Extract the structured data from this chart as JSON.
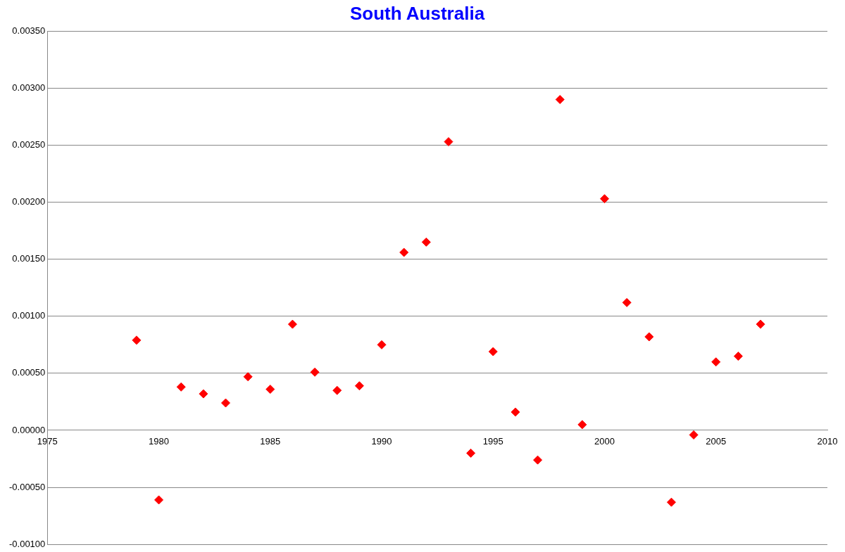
{
  "chart_data": {
    "type": "scatter",
    "title": "South Australia",
    "x": [
      1979,
      1980,
      1981,
      1982,
      1983,
      1984,
      1985,
      1986,
      1987,
      1988,
      1989,
      1990,
      1991,
      1992,
      1993,
      1994,
      1995,
      1996,
      1997,
      1998,
      1999,
      2000,
      2001,
      2002,
      2003,
      2004,
      2005,
      2006,
      2007
    ],
    "series": [
      {
        "color": "#ff0000",
        "values": [
          0.00079,
          -0.00061,
          0.00038,
          0.00032,
          0.00024,
          0.00047,
          0.00036,
          0.00093,
          0.00051,
          0.00035,
          0.00039,
          0.00075,
          0.00156,
          0.00165,
          0.00253,
          -0.0002,
          0.00069,
          0.00016,
          -0.00026,
          0.0029,
          5e-05,
          0.00203,
          0.00112,
          0.00082,
          -0.00063,
          -4e-05,
          0.0006,
          0.00065,
          0.00093
        ]
      }
    ],
    "xlim": [
      1975,
      2010
    ],
    "xticks": [
      1975,
      1980,
      1985,
      1990,
      1995,
      2000,
      2005,
      2010
    ],
    "ylim": [
      -0.001,
      0.0035
    ],
    "yticks": [
      {
        "value": -0.001,
        "label": "-0.00100"
      },
      {
        "value": -0.0005,
        "label": "-0.00050"
      },
      {
        "value": 0,
        "label": "0.00000"
      },
      {
        "value": 0.0005,
        "label": "0.00050"
      },
      {
        "value": 0.001,
        "label": "0.00100"
      },
      {
        "value": 0.0015,
        "label": "0.00150"
      },
      {
        "value": 0.002,
        "label": "0.00200"
      },
      {
        "value": 0.0025,
        "label": "0.00250"
      },
      {
        "value": 0.003,
        "label": "0.00300"
      },
      {
        "value": 0.0035,
        "label": "0.00350"
      }
    ],
    "grid": "y",
    "legend": false,
    "marker": "diamond"
  }
}
